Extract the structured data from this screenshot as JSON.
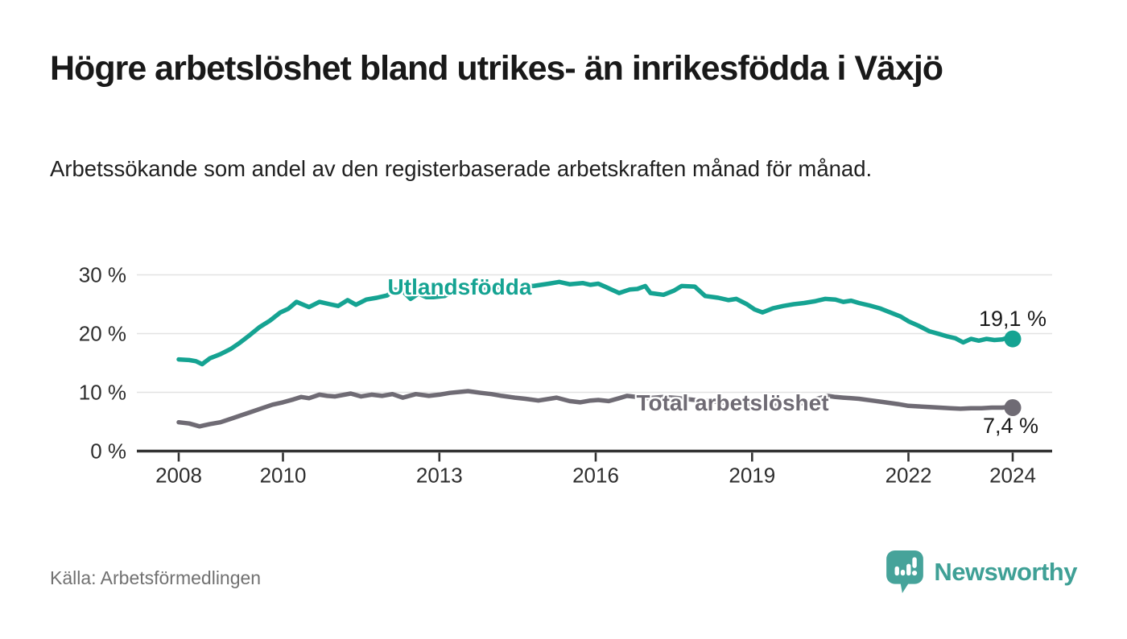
{
  "header": {
    "title": "Högre arbetslöshet bland utrikes- än inrikesfödda i Växjö",
    "subtitle": "Arbetssökande som andel av den registerbaserade arbetskraften månad för månad."
  },
  "footer": {
    "source": "Källa: Arbetsförmedlingen",
    "brand": "Newsworthy"
  },
  "chart_data": {
    "type": "line",
    "title": "Högre arbetslöshet bland utrikes- än inrikesfödda i Växjö",
    "xlabel": "",
    "ylabel": "",
    "unit": "%",
    "ylim": [
      0,
      32
    ],
    "xlim": [
      2007.1,
      2024.75
    ],
    "grid": "horizontal",
    "legend_position": "inline-labels",
    "colors": {
      "accent_teal": "#15a392",
      "neutral_gray": "#6f6b74",
      "gridline": "#e2e2e2",
      "axis": "#333333"
    },
    "yticks": [
      {
        "value": 0,
        "label": "0 %"
      },
      {
        "value": 10,
        "label": "10 %"
      },
      {
        "value": 20,
        "label": "20 %"
      },
      {
        "value": 30,
        "label": "30 %"
      }
    ],
    "xticks": [
      {
        "value": 2008,
        "label": "2008"
      },
      {
        "value": 2010,
        "label": "2010"
      },
      {
        "value": 2013,
        "label": "2013"
      },
      {
        "value": 2016,
        "label": "2016"
      },
      {
        "value": 2019,
        "label": "2019"
      },
      {
        "value": 2022,
        "label": "2022"
      },
      {
        "value": 2024,
        "label": "2024"
      }
    ],
    "series": [
      {
        "name": "Utlandsfödda",
        "color": "#15a392",
        "end_label": "19,1 %",
        "end_value": 19.1,
        "points": [
          [
            2008.0,
            15.6
          ],
          [
            2008.2,
            15.5
          ],
          [
            2008.33,
            15.3
          ],
          [
            2008.45,
            14.8
          ],
          [
            2008.6,
            15.8
          ],
          [
            2008.8,
            16.5
          ],
          [
            2009.0,
            17.4
          ],
          [
            2009.15,
            18.3
          ],
          [
            2009.33,
            19.5
          ],
          [
            2009.55,
            21.1
          ],
          [
            2009.75,
            22.2
          ],
          [
            2009.95,
            23.6
          ],
          [
            2010.1,
            24.2
          ],
          [
            2010.26,
            25.4
          ],
          [
            2010.5,
            24.5
          ],
          [
            2010.7,
            25.4
          ],
          [
            2010.9,
            25.0
          ],
          [
            2011.06,
            24.7
          ],
          [
            2011.24,
            25.7
          ],
          [
            2011.4,
            24.9
          ],
          [
            2011.6,
            25.8
          ],
          [
            2011.8,
            26.1
          ],
          [
            2012.0,
            26.5
          ],
          [
            2012.15,
            27.5
          ],
          [
            2012.3,
            27.2
          ],
          [
            2012.45,
            25.9
          ],
          [
            2012.6,
            26.8
          ],
          [
            2012.75,
            26.2
          ],
          [
            2012.9,
            26.2
          ],
          [
            2013.1,
            26.4
          ],
          [
            2013.3,
            27.4
          ],
          [
            2013.6,
            27.9
          ],
          [
            2013.9,
            27.6
          ],
          [
            2014.2,
            28.0
          ],
          [
            2014.5,
            28.3
          ],
          [
            2014.8,
            28.1
          ],
          [
            2015.1,
            28.5
          ],
          [
            2015.3,
            28.8
          ],
          [
            2015.5,
            28.4
          ],
          [
            2015.75,
            28.6
          ],
          [
            2015.9,
            28.3
          ],
          [
            2016.05,
            28.5
          ],
          [
            2016.2,
            27.9
          ],
          [
            2016.45,
            26.9
          ],
          [
            2016.65,
            27.5
          ],
          [
            2016.8,
            27.6
          ],
          [
            2016.95,
            28.1
          ],
          [
            2017.05,
            26.9
          ],
          [
            2017.3,
            26.6
          ],
          [
            2017.5,
            27.3
          ],
          [
            2017.65,
            28.1
          ],
          [
            2017.9,
            28.0
          ],
          [
            2018.1,
            26.4
          ],
          [
            2018.35,
            26.1
          ],
          [
            2018.55,
            25.7
          ],
          [
            2018.7,
            25.9
          ],
          [
            2018.9,
            25.0
          ],
          [
            2019.05,
            24.1
          ],
          [
            2019.2,
            23.6
          ],
          [
            2019.4,
            24.3
          ],
          [
            2019.6,
            24.7
          ],
          [
            2019.8,
            25.0
          ],
          [
            2020.0,
            25.2
          ],
          [
            2020.2,
            25.5
          ],
          [
            2020.4,
            25.9
          ],
          [
            2020.6,
            25.8
          ],
          [
            2020.75,
            25.4
          ],
          [
            2020.9,
            25.6
          ],
          [
            2021.05,
            25.2
          ],
          [
            2021.25,
            24.8
          ],
          [
            2021.45,
            24.3
          ],
          [
            2021.65,
            23.6
          ],
          [
            2021.85,
            22.9
          ],
          [
            2022.0,
            22.1
          ],
          [
            2022.2,
            21.3
          ],
          [
            2022.4,
            20.4
          ],
          [
            2022.6,
            19.9
          ],
          [
            2022.75,
            19.5
          ],
          [
            2022.9,
            19.2
          ],
          [
            2023.05,
            18.5
          ],
          [
            2023.2,
            19.1
          ],
          [
            2023.35,
            18.8
          ],
          [
            2023.5,
            19.1
          ],
          [
            2023.65,
            18.9
          ],
          [
            2023.8,
            19.0
          ],
          [
            2023.9,
            19.3
          ],
          [
            2024.0,
            19.1
          ]
        ]
      },
      {
        "name": "Total arbetslöshet",
        "color": "#6f6b74",
        "end_label": "7,4 %",
        "end_value": 7.4,
        "points": [
          [
            2008.0,
            4.9
          ],
          [
            2008.2,
            4.7
          ],
          [
            2008.4,
            4.2
          ],
          [
            2008.6,
            4.6
          ],
          [
            2008.8,
            4.9
          ],
          [
            2009.0,
            5.5
          ],
          [
            2009.2,
            6.1
          ],
          [
            2009.4,
            6.7
          ],
          [
            2009.6,
            7.3
          ],
          [
            2009.8,
            7.9
          ],
          [
            2010.0,
            8.3
          ],
          [
            2010.2,
            8.8
          ],
          [
            2010.35,
            9.2
          ],
          [
            2010.5,
            9.0
          ],
          [
            2010.7,
            9.6
          ],
          [
            2010.85,
            9.4
          ],
          [
            2011.0,
            9.3
          ],
          [
            2011.3,
            9.8
          ],
          [
            2011.5,
            9.3
          ],
          [
            2011.7,
            9.6
          ],
          [
            2011.9,
            9.4
          ],
          [
            2012.1,
            9.7
          ],
          [
            2012.3,
            9.1
          ],
          [
            2012.55,
            9.7
          ],
          [
            2012.8,
            9.4
          ],
          [
            2013.0,
            9.6
          ],
          [
            2013.2,
            9.9
          ],
          [
            2013.55,
            10.2
          ],
          [
            2013.8,
            9.9
          ],
          [
            2014.0,
            9.7
          ],
          [
            2014.2,
            9.4
          ],
          [
            2014.45,
            9.1
          ],
          [
            2014.65,
            8.9
          ],
          [
            2014.9,
            8.6
          ],
          [
            2015.25,
            9.1
          ],
          [
            2015.5,
            8.5
          ],
          [
            2015.7,
            8.3
          ],
          [
            2015.9,
            8.6
          ],
          [
            2016.05,
            8.7
          ],
          [
            2016.25,
            8.5
          ],
          [
            2016.45,
            9.0
          ],
          [
            2016.6,
            9.4
          ],
          [
            2016.8,
            9.2
          ],
          [
            2017.0,
            9.0
          ],
          [
            2017.3,
            9.2
          ],
          [
            2017.6,
            9.0
          ],
          [
            2017.9,
            8.7
          ],
          [
            2018.2,
            8.5
          ],
          [
            2018.5,
            8.2
          ],
          [
            2018.8,
            8.0
          ],
          [
            2019.1,
            7.9
          ],
          [
            2019.4,
            7.8
          ],
          [
            2019.7,
            8.0
          ],
          [
            2020.0,
            8.2
          ],
          [
            2020.25,
            8.9
          ],
          [
            2020.45,
            9.4
          ],
          [
            2020.6,
            9.2
          ],
          [
            2020.75,
            9.1
          ],
          [
            2020.9,
            9.0
          ],
          [
            2021.05,
            8.9
          ],
          [
            2021.3,
            8.6
          ],
          [
            2021.55,
            8.3
          ],
          [
            2021.8,
            8.0
          ],
          [
            2022.0,
            7.7
          ],
          [
            2022.2,
            7.6
          ],
          [
            2022.4,
            7.5
          ],
          [
            2022.6,
            7.4
          ],
          [
            2022.8,
            7.3
          ],
          [
            2023.0,
            7.2
          ],
          [
            2023.2,
            7.3
          ],
          [
            2023.4,
            7.3
          ],
          [
            2023.6,
            7.4
          ],
          [
            2023.8,
            7.4
          ],
          [
            2023.9,
            7.5
          ],
          [
            2024.0,
            7.4
          ]
        ]
      }
    ]
  }
}
